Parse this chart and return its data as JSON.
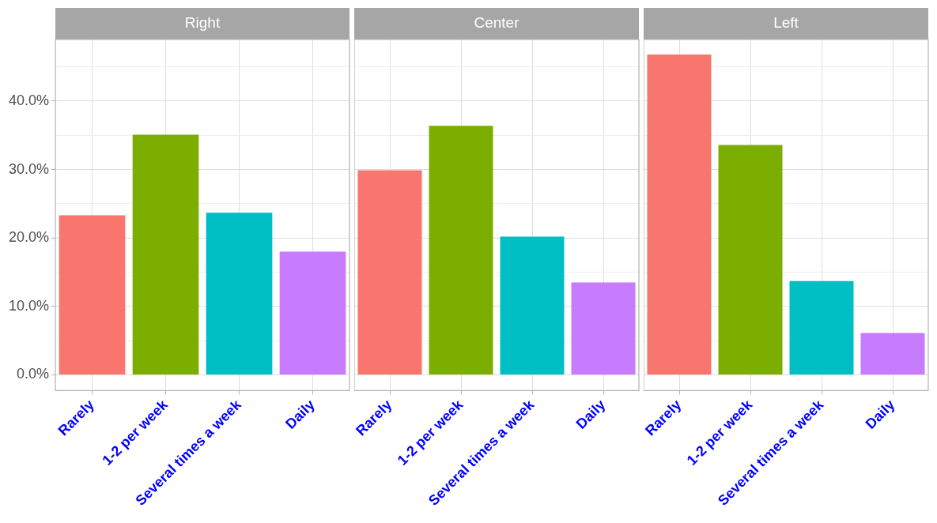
{
  "chart_data": [
    {
      "type": "bar",
      "title": "Right",
      "categories": [
        "Rarely",
        "1-2 per week",
        "Several times a week",
        "Daily"
      ],
      "values": [
        23.3,
        35.1,
        23.7,
        18.0
      ],
      "colors": [
        "#f8766d",
        "#7cae00",
        "#00bfc4",
        "#c77cff"
      ],
      "ylim": [
        -2.3,
        49
      ],
      "yticks": [
        {
          "value": 0,
          "label": "0.0%"
        },
        {
          "value": 5,
          "label": null
        },
        {
          "value": 10,
          "label": "10.0%"
        },
        {
          "value": 15,
          "label": null
        },
        {
          "value": 20,
          "label": "20.0%"
        },
        {
          "value": 25,
          "label": null
        },
        {
          "value": 30,
          "label": "30.0%"
        },
        {
          "value": 35,
          "label": null
        },
        {
          "value": 40,
          "label": "40.0%"
        },
        {
          "value": 45,
          "label": null
        }
      ],
      "grid": true
    },
    {
      "type": "bar",
      "title": "Center",
      "categories": [
        "Rarely",
        "1-2 per week",
        "Several times a week",
        "Daily"
      ],
      "values": [
        29.9,
        36.4,
        20.2,
        13.5
      ],
      "colors": [
        "#f8766d",
        "#7cae00",
        "#00bfc4",
        "#c77cff"
      ],
      "ylim": [
        -2.3,
        49
      ],
      "yticks": [
        0,
        {
          "value": 5,
          "label": null
        },
        10,
        {
          "value": 15,
          "label": null
        },
        20,
        {
          "value": 25,
          "label": null
        },
        30,
        {
          "value": 35,
          "label": null
        },
        40,
        {
          "value": 45,
          "label": null
        }
      ],
      "grid": true,
      "tick_labels": "x"
    },
    {
      "type": "bar",
      "title": "Left",
      "categories": [
        "Rarely",
        "1-2 per week",
        "Several times a week",
        "Daily"
      ],
      "values": [
        46.8,
        33.6,
        13.7,
        6.1
      ],
      "colors": [
        "#f8766d",
        "#7cae00",
        "#00bfc4",
        "#c77cff"
      ],
      "ylim": [
        -2.3,
        49
      ],
      "yticks": [
        0,
        {
          "value": 5,
          "label": null
        },
        10,
        {
          "value": 15,
          "label": null
        },
        20,
        {
          "value": 25,
          "label": null
        },
        30,
        {
          "value": 35,
          "label": null
        },
        40,
        {
          "value": 45,
          "label": null
        }
      ],
      "grid": true,
      "tick_labels": "x"
    }
  ]
}
